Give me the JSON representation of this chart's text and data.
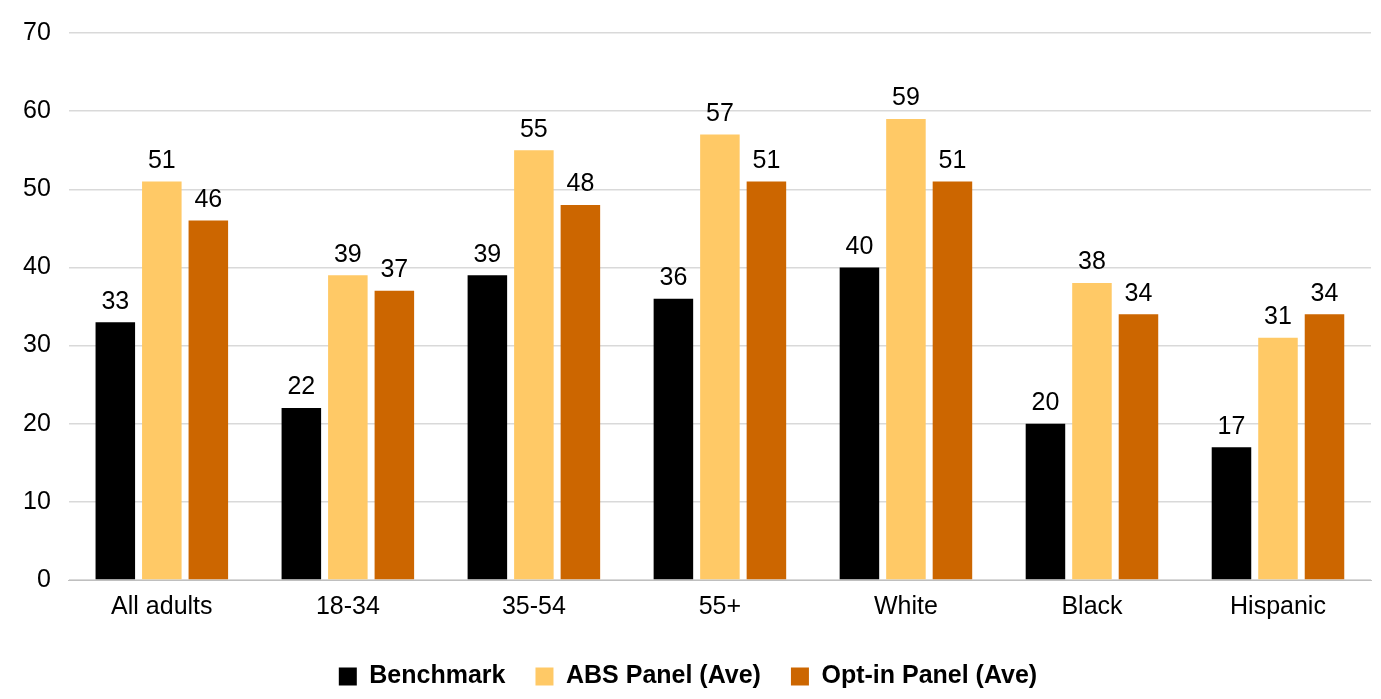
{
  "chart_data": {
    "type": "bar",
    "categories": [
      "All adults",
      "18-34",
      "35-54",
      "55+",
      "White",
      "Black",
      "Hispanic"
    ],
    "series": [
      {
        "name": "Benchmark",
        "color": "#000000",
        "values": [
          33,
          22,
          39,
          36,
          40,
          20,
          17
        ]
      },
      {
        "name": "ABS Panel (Ave)",
        "color": "#ffc966",
        "values": [
          51,
          39,
          55,
          57,
          59,
          38,
          31
        ]
      },
      {
        "name": "Opt-in Panel (Ave)",
        "color": "#cc6600",
        "values": [
          46,
          37,
          48,
          51,
          51,
          34,
          34
        ]
      }
    ],
    "ylim": [
      0,
      70
    ],
    "yticks": [
      0,
      10,
      20,
      30,
      40,
      50,
      60,
      70
    ],
    "grid": "y",
    "legend": "bottom",
    "data_labels": true
  }
}
